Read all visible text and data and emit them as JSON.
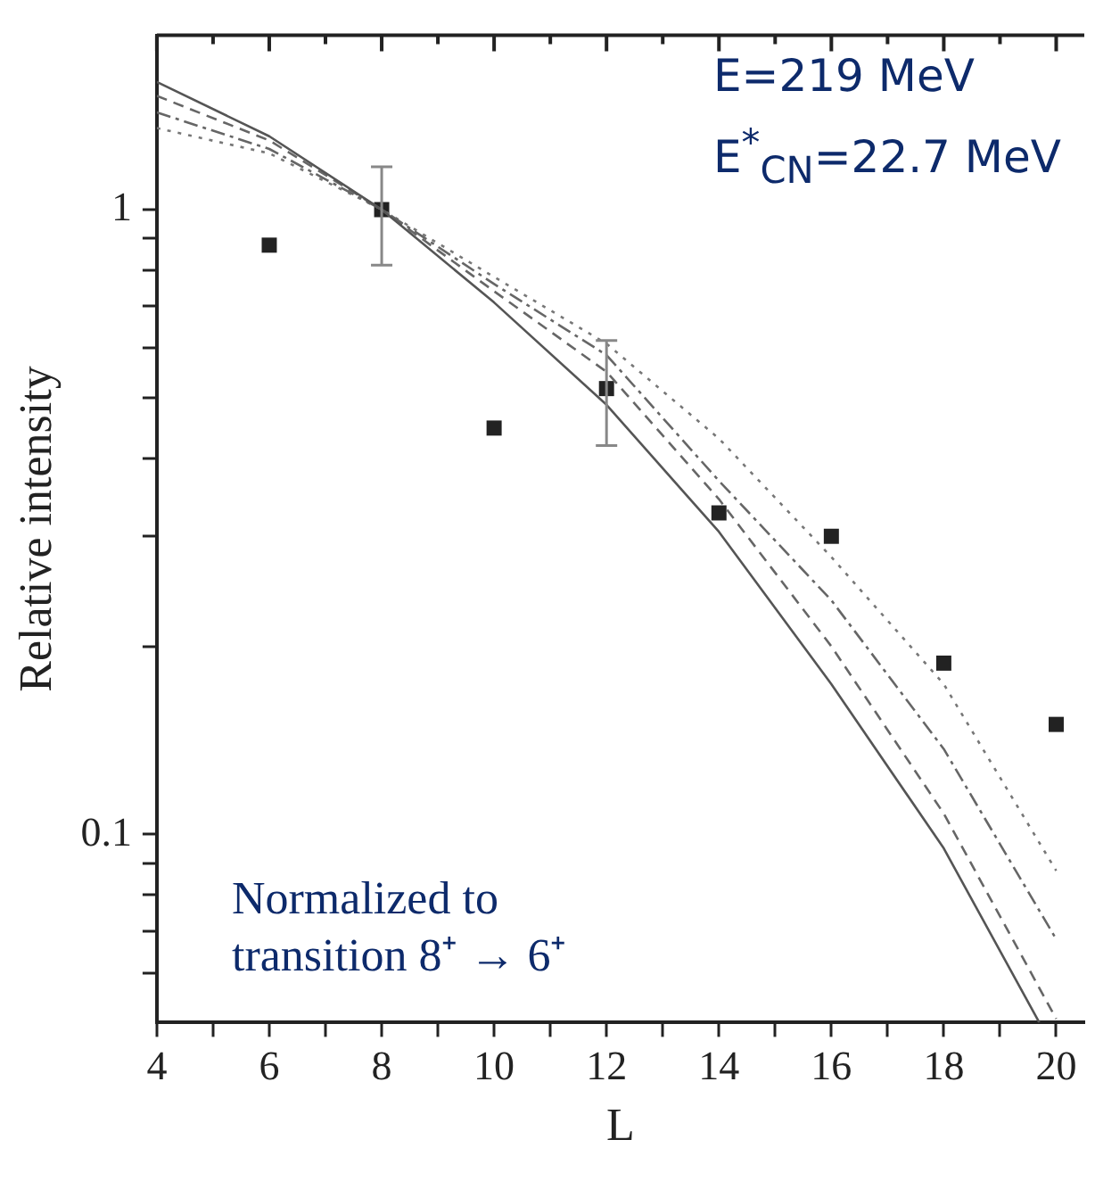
{
  "chart_data": {
    "type": "line",
    "xlabel": "L",
    "ylabel": "Relative intensity",
    "log": "y",
    "grid": false,
    "legend": false,
    "xlim": [
      4,
      20.5
    ],
    "xticks": [
      4,
      {
        "value": 5,
        "label": null
      },
      6,
      {
        "value": 7,
        "label": null
      },
      8,
      {
        "value": 9,
        "label": null
      },
      10,
      {
        "value": 11,
        "label": null
      },
      12,
      {
        "value": 13,
        "label": null
      },
      14,
      {
        "value": 15,
        "label": null
      },
      16,
      {
        "value": 17,
        "label": null
      },
      18,
      {
        "value": 19,
        "label": null
      },
      20
    ],
    "ylim": [
      0.05,
      1.9
    ],
    "yticks": [
      {
        "value": 0.06,
        "label": null
      },
      {
        "value": 0.07,
        "label": null
      },
      {
        "value": 0.08,
        "label": null
      },
      {
        "value": 0.09,
        "label": null
      },
      0.1,
      {
        "value": 0.2,
        "label": null
      },
      {
        "value": 0.3,
        "label": null
      },
      {
        "value": 0.4,
        "label": null
      },
      {
        "value": 0.5,
        "label": null
      },
      {
        "value": 0.6,
        "label": null
      },
      {
        "value": 0.7,
        "label": null
      },
      {
        "value": 0.8,
        "label": null
      },
      {
        "value": 0.9,
        "label": null
      },
      1
    ],
    "annotations": [
      "E=219  MeV",
      "E$^{*}$$_{CN}$=22.7 MeV",
      "Normalized to transition  8⁺ → 6⁺"
    ],
    "series": [
      {
        "line_style": "solid",
        "marker": "none",
        "color": "#555555",
        "x": [
          4,
          6,
          8,
          10,
          12,
          14,
          16,
          18,
          19.7
        ],
        "values": [
          1.6,
          1.31,
          1,
          0.71,
          0.487,
          0.305,
          0.174,
          0.095,
          0.05
        ]
      },
      {
        "line_style": "dashed",
        "marker": "none",
        "color": "#666666",
        "x": [
          4,
          6,
          8,
          10,
          12,
          14,
          16,
          18,
          20
        ],
        "values": [
          1.52,
          1.29,
          1,
          0.74,
          0.55,
          0.344,
          0.2,
          0.108,
          0.0507
        ]
      },
      {
        "line_style": "dashdot",
        "marker": "none",
        "color": "#666666",
        "x": [
          4,
          6,
          8,
          10,
          12,
          14,
          16,
          18,
          20
        ],
        "values": [
          1.43,
          1.25,
          1,
          0.76,
          0.585,
          0.368,
          0.237,
          0.137,
          0.068
        ]
      },
      {
        "line_style": "dotted",
        "marker": "none",
        "color": "#777777",
        "x": [
          4,
          6,
          8,
          10,
          12,
          14,
          16,
          18,
          20
        ],
        "values": [
          1.35,
          1.23,
          1,
          0.78,
          0.61,
          0.43,
          0.278,
          0.174,
          0.0875
        ]
      },
      {
        "type": "scatter",
        "marker": "square",
        "color": "#222222",
        "x": [
          6,
          8,
          10,
          12,
          14,
          16,
          18,
          20
        ],
        "values": [
          0.877,
          1,
          0.447,
          0.517,
          0.327,
          0.3,
          0.188,
          0.15
        ],
        "errors": [
          null,
          [
            0.815,
            1.17
          ],
          null,
          [
            0.419,
            0.617
          ],
          null,
          null,
          null,
          null
        ]
      }
    ]
  }
}
